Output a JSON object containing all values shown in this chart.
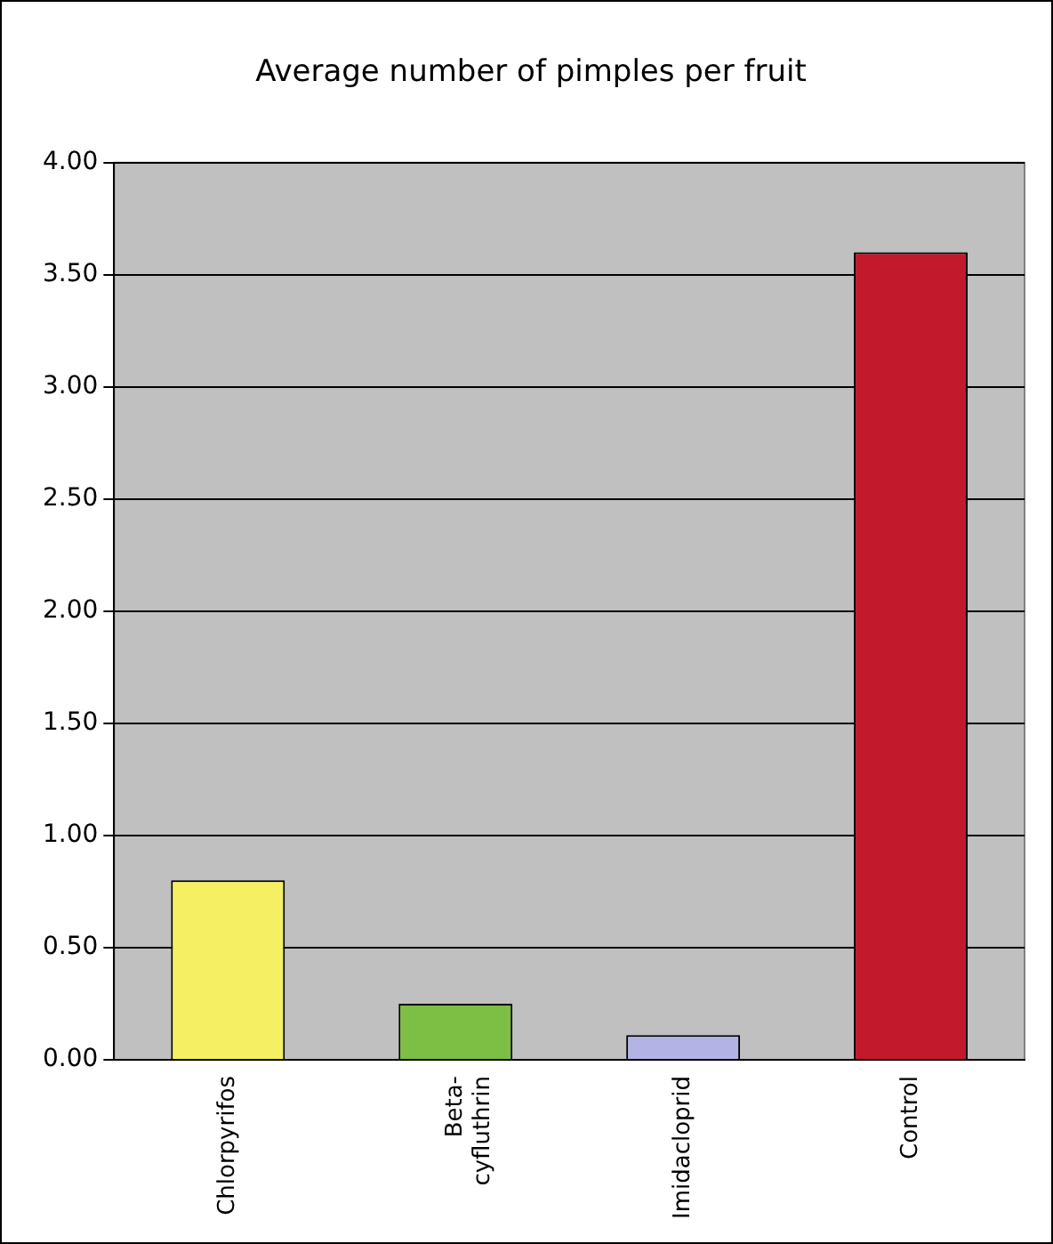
{
  "chart_data": {
    "type": "bar",
    "title": "Average number of pimples per fruit",
    "categories": [
      "Chlorpyrifos",
      "Beta-\ncyfluthrin",
      "Imidacloprid",
      "Control"
    ],
    "values": [
      0.8,
      0.25,
      0.11,
      3.6
    ],
    "colors": [
      "#f5f063",
      "#7dbf45",
      "#b3b3e6",
      "#c2192c"
    ],
    "ylim": [
      0,
      4
    ],
    "yticks": [
      {
        "value": 0,
        "label": "0.00"
      },
      {
        "value": 0.5,
        "label": "0.50"
      },
      {
        "value": 1,
        "label": "1.00"
      },
      {
        "value": 1.5,
        "label": "1.50"
      },
      {
        "value": 2,
        "label": "2.00"
      },
      {
        "value": 2.5,
        "label": "2.50"
      },
      {
        "value": 3,
        "label": "3.00"
      },
      {
        "value": 3.5,
        "label": "3.50"
      },
      {
        "value": 4,
        "label": "4.00"
      }
    ],
    "grid": "y",
    "legend": false
  }
}
